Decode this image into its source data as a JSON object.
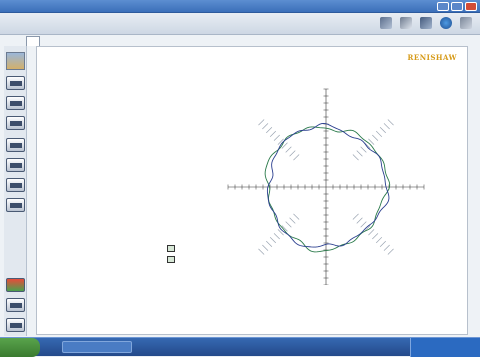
{
  "window": {
    "title": ""
  },
  "app": {
    "title": ""
  },
  "toolbar": {
    "icons": [
      "scan-icon",
      "print-icon",
      "settings-icon",
      "globe-icon",
      "help-icon"
    ]
  },
  "tabs": [
    {
      "label": ""
    }
  ],
  "sidebar": {
    "items": [
      "",
      "",
      "",
      "",
      "",
      "",
      "",
      "",
      "",
      ""
    ]
  },
  "report": {
    "title": "",
    "file": "",
    "meta": [
      "",
      ""
    ],
    "logo": "RENISHAW",
    "meta_right": [
      "",
      ""
    ],
    "section1": {
      "header": "",
      "rows": [
        {
          "label": "",
          "value": "",
          "unit": ""
        },
        {
          "label": "",
          "value": "",
          "unit": ""
        },
        {
          "label": "",
          "value": "",
          "unit": ""
        }
      ]
    },
    "section2": {
      "header": "",
      "rows": [
        {
          "label": "",
          "value": ""
        },
        {
          "label": "",
          "value": ""
        },
        {
          "label": "",
          "value": ""
        },
        {
          "label": "",
          "value": ""
        },
        {
          "label": "",
          "value": ""
        },
        {
          "label": "",
          "value": ""
        },
        {
          "label": "",
          "value": ""
        },
        {
          "label": "",
          "value": ""
        },
        {
          "label": "",
          "value": ""
        }
      ]
    },
    "section3": {
      "rows": [
        {
          "label": "",
          "value": ""
        },
        {
          "label": "",
          "value": ""
        },
        {
          "label": "",
          "value": ""
        }
      ]
    },
    "legend": [
      "",
      ""
    ],
    "note": ""
  },
  "taskbar": {
    "start": "",
    "task": "",
    "clock": ""
  },
  "colors": {
    "accent": "#3b6fb9",
    "trace_cw": "#2a7a4a",
    "trace_ccw": "#2b3f8f",
    "logo": "#d69a17"
  }
}
